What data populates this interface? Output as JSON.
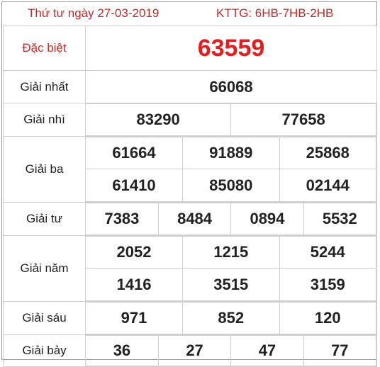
{
  "header": {
    "date": "Thứ tư ngày 27-03-2019",
    "code": "KTTG: 6HB-7HB-2HB"
  },
  "prizes": {
    "special": {
      "label": "Đặc biệt",
      "numbers": [
        "63559"
      ]
    },
    "first": {
      "label": "Giải nhất",
      "numbers": [
        "66068"
      ]
    },
    "second": {
      "label": "Giải nhì",
      "numbers": [
        "83290",
        "77658"
      ]
    },
    "third": {
      "label": "Giải ba",
      "numbers": [
        "61664",
        "91889",
        "25868",
        "61410",
        "85080",
        "02144"
      ]
    },
    "fourth": {
      "label": "Giải tư",
      "numbers": [
        "7383",
        "8484",
        "0894",
        "5532"
      ]
    },
    "fifth": {
      "label": "Giải năm",
      "numbers": [
        "2052",
        "1215",
        "5244",
        "1416",
        "3515",
        "3159"
      ]
    },
    "sixth": {
      "label": "Giải sáu",
      "numbers": [
        "971",
        "852",
        "120"
      ]
    },
    "seventh": {
      "label": "Giải bảy",
      "numbers": [
        "36",
        "27",
        "47",
        "77"
      ]
    }
  },
  "colors": {
    "header_text": "#c62828",
    "special_number": "#e31e1e",
    "border": "#cfcfcf"
  }
}
